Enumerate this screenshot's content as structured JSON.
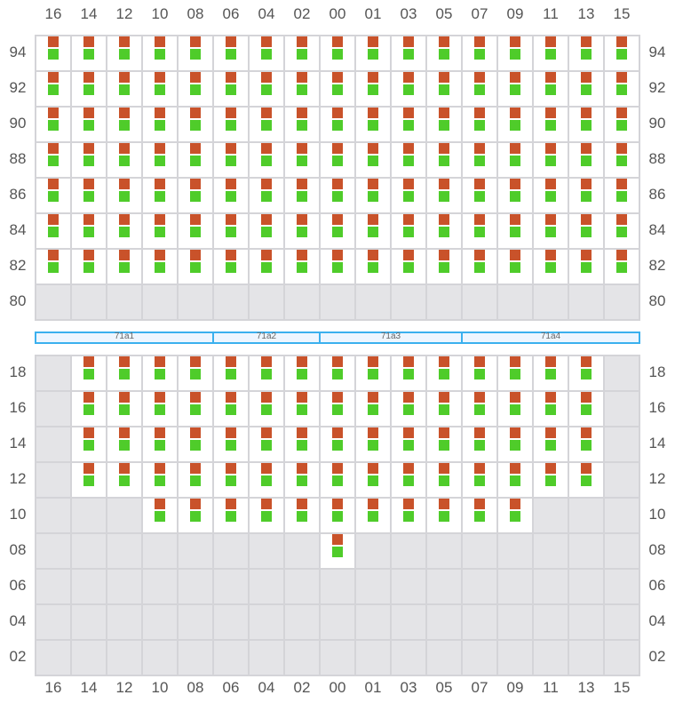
{
  "columns": [
    "16",
    "14",
    "12",
    "10",
    "08",
    "06",
    "04",
    "02",
    "00",
    "01",
    "03",
    "05",
    "07",
    "09",
    "11",
    "13",
    "15"
  ],
  "colors": {
    "upper_marker": "#c9522a",
    "lower_marker": "#4fcc2a",
    "empty_cell": "#e4e4e7",
    "zone_border": "#3bb0ee"
  },
  "top_block": [
    {
      "row": "94",
      "filled": "all"
    },
    {
      "row": "92",
      "filled": "all"
    },
    {
      "row": "90",
      "filled": "all"
    },
    {
      "row": "88",
      "filled": "all"
    },
    {
      "row": "86",
      "filled": "all"
    },
    {
      "row": "84",
      "filled": "all"
    },
    {
      "row": "82",
      "filled": "all"
    },
    {
      "row": "80",
      "filled": []
    }
  ],
  "zones": [
    {
      "label": "71a1",
      "span": 5
    },
    {
      "label": "71a2",
      "span": 3
    },
    {
      "label": "71a3",
      "span": 4
    },
    {
      "label": "71a4",
      "span": 5
    }
  ],
  "bottom_block": [
    {
      "row": "18",
      "filled": [
        "14",
        "12",
        "10",
        "08",
        "06",
        "04",
        "02",
        "00",
        "01",
        "03",
        "05",
        "07",
        "09",
        "11",
        "13"
      ]
    },
    {
      "row": "16",
      "filled": [
        "14",
        "12",
        "10",
        "08",
        "06",
        "04",
        "02",
        "00",
        "01",
        "03",
        "05",
        "07",
        "09",
        "11",
        "13"
      ]
    },
    {
      "row": "14",
      "filled": [
        "14",
        "12",
        "10",
        "08",
        "06",
        "04",
        "02",
        "00",
        "01",
        "03",
        "05",
        "07",
        "09",
        "11",
        "13"
      ]
    },
    {
      "row": "12",
      "filled": [
        "14",
        "12",
        "10",
        "08",
        "06",
        "04",
        "02",
        "00",
        "01",
        "03",
        "05",
        "07",
        "09",
        "11",
        "13"
      ]
    },
    {
      "row": "10",
      "filled": [
        "10",
        "08",
        "06",
        "04",
        "02",
        "00",
        "01",
        "03",
        "05",
        "07",
        "09"
      ]
    },
    {
      "row": "08",
      "filled": [
        "00"
      ]
    },
    {
      "row": "06",
      "filled": []
    },
    {
      "row": "04",
      "filled": []
    },
    {
      "row": "02",
      "filled": []
    }
  ]
}
